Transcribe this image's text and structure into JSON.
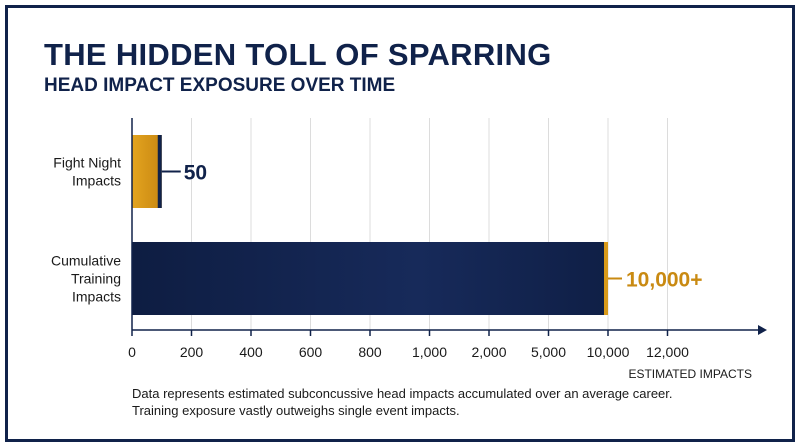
{
  "chart_data": {
    "type": "bar",
    "orientation": "horizontal",
    "title": "THE HIDDEN TOLL OF SPARRING",
    "subtitle": "HEAD IMPACT EXPOSURE OVER TIME",
    "categories": [
      "Fight Night Impacts",
      "Cumulative Training Impacts"
    ],
    "category_lines": [
      [
        "Fight Night",
        "Impacts"
      ],
      [
        "Cumulative",
        "Training",
        "Impacts"
      ]
    ],
    "values": [
      50,
      10000
    ],
    "data_labels": [
      "50",
      "10,000+"
    ],
    "x_ticks": [
      0,
      200,
      400,
      600,
      800,
      1000,
      2000,
      5000,
      10000,
      12000
    ],
    "x_tick_labels": [
      "0",
      "200",
      "400",
      "600",
      "800",
      "1,000",
      "2,000",
      "5,000",
      "10,000",
      "12,000"
    ],
    "xlabel": "ESTIMATED IMPACTS",
    "xlim": [
      0,
      12000
    ],
    "x_scale": "non-linear (evenly spaced ticks)",
    "grid": "vertical",
    "colors": {
      "fight_bar": "#d99a1a",
      "training_bar": "#10224a",
      "fight_label": "#10224a",
      "training_label": "#c98a12"
    }
  },
  "footnote": [
    "Data represents estimated subconcussive head impacts accumulated over an average career.",
    "Training exposure vastly outweighs single event impacts."
  ]
}
